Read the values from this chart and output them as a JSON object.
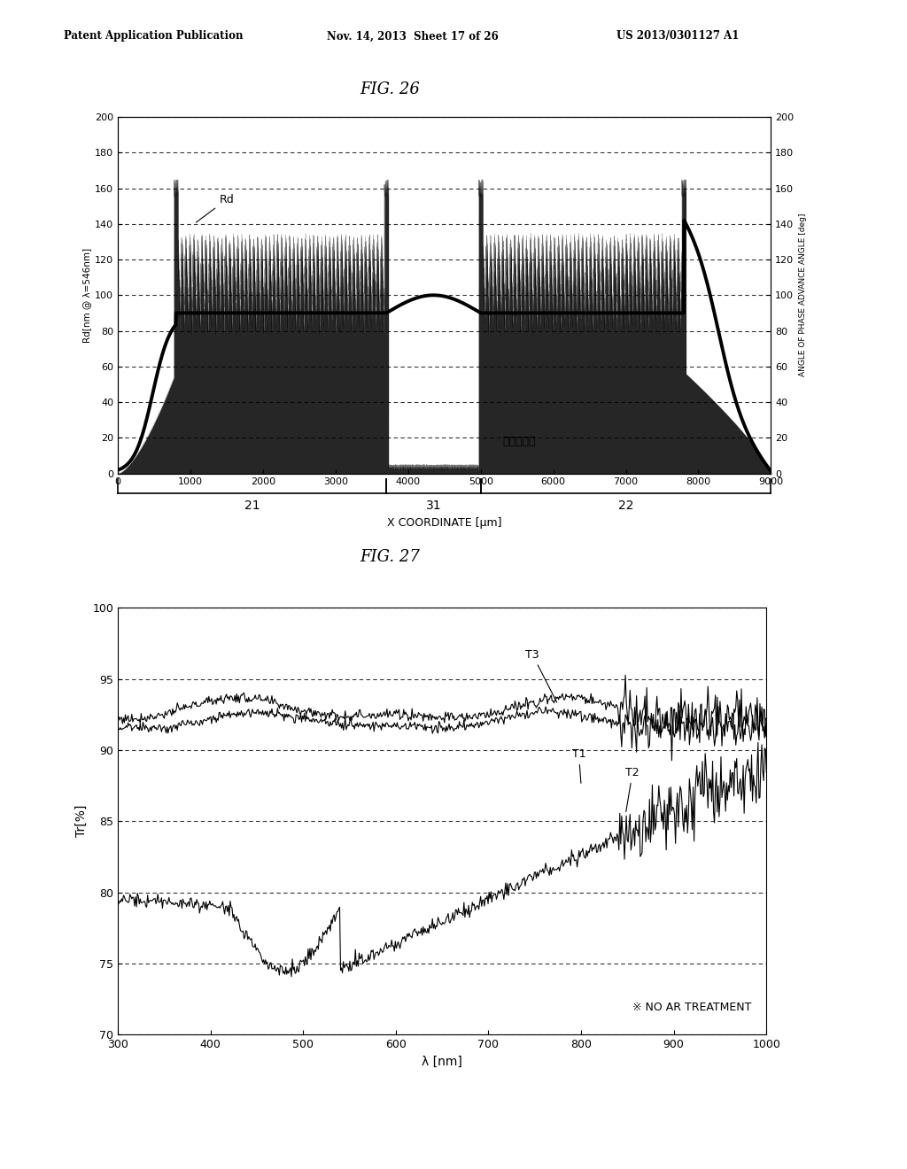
{
  "header_left": "Patent Application Publication",
  "header_center": "Nov. 14, 2013  Sheet 17 of 26",
  "header_right": "US 2013/0301127 A1",
  "fig26_title": "FIG. 26",
  "fig27_title": "FIG. 27",
  "fig26": {
    "ylabel_left": "Rd[nm @ λ=546nm]",
    "ylabel_right": "ANGLE OF PHASE ADVANCE ANGLE [deg]",
    "xlim": [
      0,
      9000
    ],
    "ylim": [
      0,
      200
    ],
    "xticks": [
      0,
      1000,
      2000,
      3000,
      4000,
      5000,
      6000,
      7000,
      8000,
      9000
    ],
    "yticks": [
      0,
      20,
      40,
      60,
      80,
      100,
      120,
      140,
      160,
      180,
      200
    ],
    "region_boundaries": [
      800,
      3700,
      5000,
      7800
    ],
    "rd_label": "Rd",
    "phase_label": "進相軸觓度",
    "xlabel_below": "X COORDINATE [μm]"
  },
  "fig27": {
    "xlabel": "λ [nm]",
    "ylabel": "Tr[%]",
    "xlim": [
      300,
      1000
    ],
    "ylim": [
      70,
      100
    ],
    "xticks": [
      300,
      400,
      500,
      600,
      700,
      800,
      900,
      1000
    ],
    "yticks": [
      70,
      75,
      80,
      85,
      90,
      95,
      100
    ],
    "note": "※ NO AR TREATMENT",
    "labels": [
      "T1",
      "T2",
      "T3"
    ]
  },
  "bg_color": "#ffffff"
}
